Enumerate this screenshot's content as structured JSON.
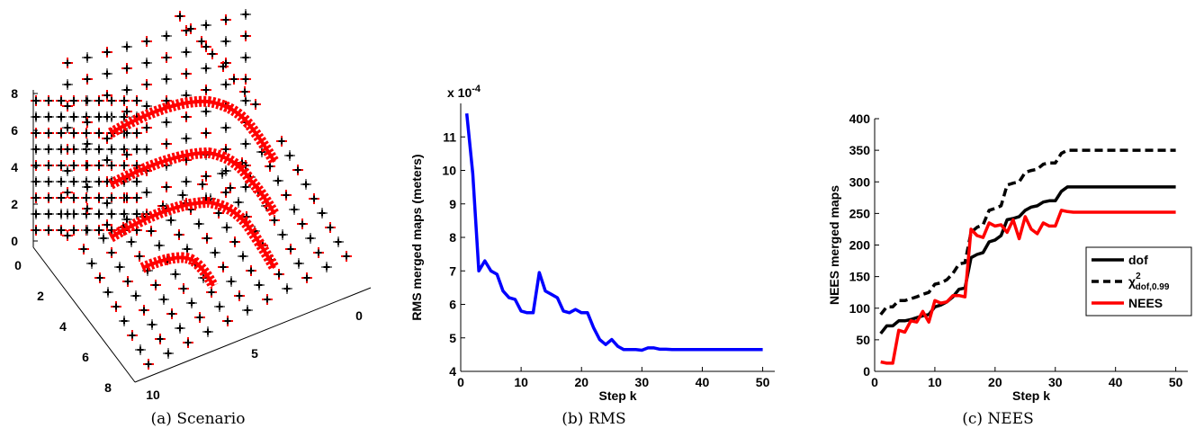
{
  "figures": {
    "a": {
      "caption": "(a) Scenario"
    },
    "b": {
      "caption": "(b) RMS"
    },
    "c": {
      "caption": "(c) NEES"
    }
  },
  "chart_data": [
    {
      "type": "scatter",
      "subtype": "3d",
      "title": "",
      "xlabel": "",
      "ylabel": "",
      "zlabel": "",
      "x_ticks": [
        "0",
        "5",
        "10"
      ],
      "y_ticks": [
        "0",
        "2",
        "4",
        "6",
        "8"
      ],
      "z_ticks": [
        "0",
        "2",
        "4",
        "6",
        "8"
      ],
      "xlim": [
        0,
        10
      ],
      "ylim": [
        0,
        8
      ],
      "zlim": [
        0,
        8
      ],
      "series": [
        {
          "marker": "+",
          "color": "#ff0000",
          "trajectories": [
            {
              "z": 7,
              "x": [
                1,
                4,
                5,
                6,
                7.5,
                9
              ],
              "y": [
                1,
                2,
                1.5,
                3,
                5,
                7
              ]
            },
            {
              "z": 5,
              "x": [
                1,
                4,
                5,
                6,
                7.5,
                9
              ],
              "y": [
                1,
                2,
                1.5,
                3,
                5,
                7
              ]
            },
            {
              "z": 3,
              "x": [
                1,
                4,
                5,
                6,
                7.5,
                9
              ],
              "y": [
                1,
                2,
                1.5,
                3,
                5,
                7
              ]
            },
            {
              "z": 1,
              "x": [
                1,
                4,
                5,
                6,
                7.5,
                9
              ],
              "y": [
                1,
                2,
                1.5,
                3,
                5,
                7
              ]
            },
            {
              "z": 0,
              "x": [
                4,
                5,
                6,
                7
              ],
              "y": [
                4,
                3.5,
                4,
                5.5
              ]
            }
          ]
        },
        {
          "marker": "+",
          "color": "#000000",
          "grid": "landmarks on cube faces"
        },
        {
          "marker": "+",
          "color": "#7f7f7f",
          "grid": "landmarks on cube faces"
        }
      ]
    },
    {
      "type": "line",
      "title": "",
      "xlabel": "Step k",
      "ylabel": "RMS merged maps (meters)",
      "y_multiplier": "x 10^-4",
      "xlim": [
        0,
        52
      ],
      "ylim": [
        4,
        12
      ],
      "x_ticks": [
        0,
        10,
        20,
        30,
        40,
        50
      ],
      "y_ticks": [
        4,
        5,
        6,
        7,
        8,
        9,
        10,
        11
      ],
      "series": [
        {
          "color": "#0000ff",
          "x": [
            1,
            2,
            3,
            4,
            5,
            6,
            7,
            8,
            9,
            10,
            11,
            12,
            13,
            14,
            15,
            16,
            17,
            18,
            19,
            20,
            21,
            22,
            23,
            24,
            25,
            26,
            27,
            28,
            29,
            30,
            31,
            32,
            33,
            34,
            35,
            36,
            37,
            38,
            39,
            40,
            41,
            42,
            43,
            44,
            45,
            46,
            47,
            48,
            49,
            50
          ],
          "values": [
            11.7,
            9.9,
            7.0,
            7.3,
            7.0,
            6.9,
            6.4,
            6.2,
            6.15,
            5.8,
            5.75,
            5.75,
            6.95,
            6.4,
            6.3,
            6.2,
            5.8,
            5.75,
            5.85,
            5.75,
            5.75,
            5.3,
            4.95,
            4.8,
            4.95,
            4.75,
            4.65,
            4.65,
            4.65,
            4.63,
            4.7,
            4.7,
            4.66,
            4.66,
            4.65,
            4.65,
            4.65,
            4.65,
            4.65,
            4.65,
            4.65,
            4.65,
            4.65,
            4.65,
            4.65,
            4.65,
            4.65,
            4.65,
            4.65,
            4.65
          ]
        }
      ]
    },
    {
      "type": "line",
      "title": "",
      "xlabel": "Step k",
      "ylabel": "NEES merged maps",
      "xlim": [
        0,
        52
      ],
      "ylim": [
        0,
        400
      ],
      "x_ticks": [
        0,
        10,
        20,
        30,
        40,
        50
      ],
      "y_ticks": [
        0,
        50,
        100,
        150,
        200,
        250,
        300,
        350,
        400
      ],
      "legend_position": "right",
      "series": [
        {
          "name": "dof",
          "color": "#000000",
          "dash": "solid",
          "x": [
            1,
            2,
            3,
            4,
            5,
            6,
            7,
            8,
            9,
            10,
            11,
            12,
            13,
            14,
            15,
            16,
            17,
            18,
            19,
            20,
            21,
            22,
            23,
            24,
            25,
            26,
            27,
            28,
            29,
            30,
            31,
            32,
            33,
            34,
            35,
            36,
            37,
            38,
            39,
            40,
            41,
            42,
            43,
            44,
            45,
            46,
            47,
            48,
            49,
            50
          ],
          "values": [
            60,
            72,
            72,
            80,
            80,
            82,
            85,
            88,
            90,
            102,
            105,
            110,
            118,
            130,
            132,
            180,
            185,
            188,
            205,
            208,
            215,
            240,
            242,
            245,
            255,
            260,
            262,
            268,
            270,
            270,
            285,
            292,
            292,
            292,
            292,
            292,
            292,
            292,
            292,
            292,
            292,
            292,
            292,
            292,
            292,
            292,
            292,
            292,
            292,
            292
          ]
        },
        {
          "name": "χ²_dof,0.99",
          "color": "#000000",
          "dash": "dashed",
          "x": [
            1,
            2,
            3,
            4,
            5,
            6,
            7,
            8,
            9,
            10,
            11,
            12,
            13,
            14,
            15,
            16,
            17,
            18,
            19,
            20,
            21,
            22,
            23,
            24,
            25,
            26,
            27,
            28,
            29,
            30,
            31,
            32,
            33,
            34,
            35,
            36,
            37,
            38,
            39,
            40,
            41,
            42,
            43,
            44,
            45,
            46,
            47,
            48,
            49,
            50
          ],
          "values": [
            90,
            102,
            102,
            112,
            112,
            115,
            118,
            122,
            125,
            138,
            140,
            145,
            155,
            170,
            172,
            220,
            228,
            232,
            255,
            258,
            262,
            295,
            298,
            300,
            315,
            318,
            320,
            328,
            330,
            330,
            345,
            350,
            350,
            350,
            350,
            350,
            350,
            350,
            350,
            350,
            350,
            350,
            350,
            350,
            350,
            350,
            350,
            350,
            350,
            350
          ]
        },
        {
          "name": "NEES",
          "color": "#ff0000",
          "dash": "solid",
          "x": [
            1,
            2,
            3,
            4,
            5,
            6,
            7,
            8,
            9,
            10,
            11,
            12,
            13,
            14,
            15,
            16,
            17,
            18,
            19,
            20,
            21,
            22,
            23,
            24,
            25,
            26,
            27,
            28,
            29,
            30,
            31,
            32,
            33,
            34,
            35,
            36,
            37,
            38,
            39,
            40,
            41,
            42,
            43,
            44,
            45,
            46,
            47,
            48,
            49,
            50
          ],
          "values": [
            15,
            13,
            13,
            65,
            62,
            80,
            78,
            95,
            78,
            112,
            108,
            110,
            120,
            120,
            118,
            225,
            215,
            212,
            235,
            230,
            232,
            220,
            240,
            210,
            245,
            225,
            218,
            235,
            230,
            230,
            255,
            253,
            252,
            252,
            252,
            252,
            252,
            252,
            252,
            252,
            252,
            252,
            252,
            252,
            252,
            252,
            252,
            252,
            252,
            252
          ]
        }
      ]
    }
  ]
}
